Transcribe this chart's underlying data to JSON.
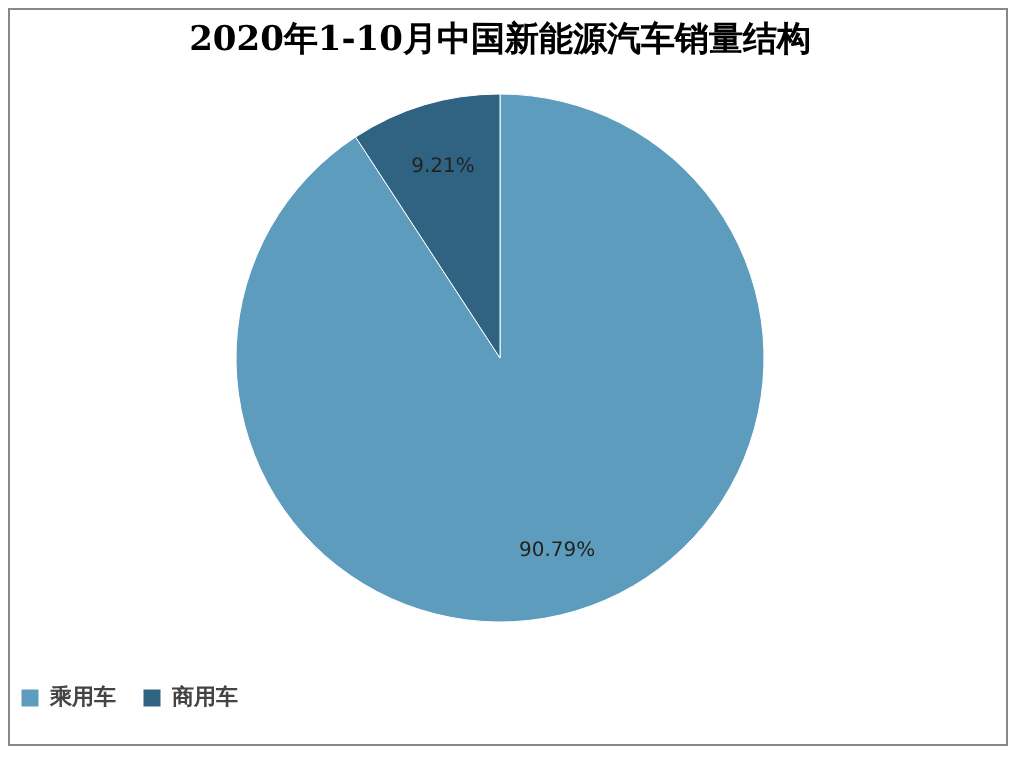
{
  "chart_data": {
    "type": "pie",
    "title": "2020年1-10月中国新能源汽车销量结构",
    "categories": [
      "乘用车",
      "商用车"
    ],
    "values": [
      90.79,
      9.21
    ],
    "colors": [
      "#5e9cbd",
      "#2f6381"
    ],
    "value_labels": [
      "90.79%",
      "9.21%"
    ],
    "legend": "bottom"
  }
}
